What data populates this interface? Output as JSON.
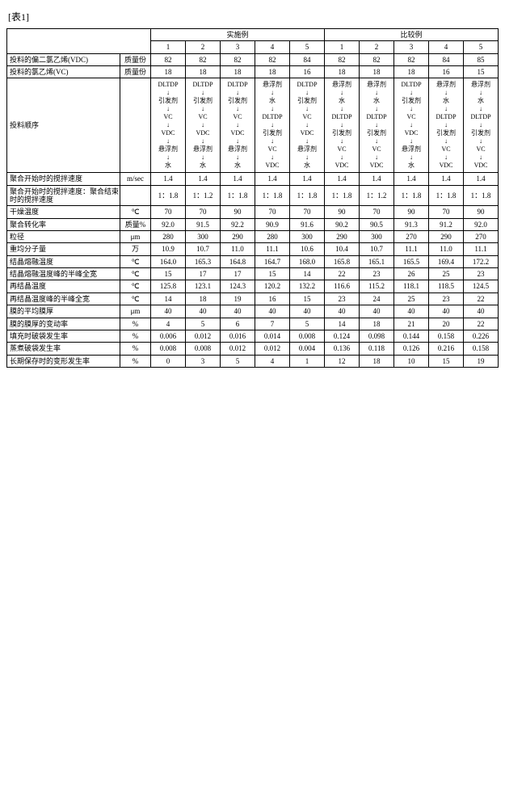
{
  "caption": "[表1]",
  "headers": {
    "group_ex": "实施例",
    "group_cmp": "比较例",
    "nums": [
      "1",
      "2",
      "3",
      "4",
      "5",
      "1",
      "2",
      "3",
      "4",
      "5"
    ]
  },
  "rowlabels": {
    "vdc": "投料的偏二氯乙烯(VDC)",
    "vc": "投料的氯乙烯(VC)",
    "order": "投料顺序",
    "stir_start": "聚合开始时的搅拌速度",
    "stir_ratio": "聚合开始时的搅拌速度：聚合结束时的搅拌速度",
    "dry_temp": "干燥温度",
    "conv": "聚合转化率",
    "particle": "粒径",
    "mw": "重均分子量",
    "melt_temp": "结晶熔融温度",
    "melt_fwhm": "结晶熔融温度峰的半峰全宽",
    "recry_temp": "再结晶温度",
    "recry_fwhm": "再结晶温度峰的半峰全宽",
    "film_thick": "膜的平均膜厚",
    "film_var": "膜的膜厚的变动率",
    "fill_bag": "填充时破袋发生率",
    "steam_bag": "蒸煮破袋发生率",
    "deform": "长期保存时的变形发生率"
  },
  "units": {
    "mass": "质量份",
    "msec": "m/sec",
    "c": "℃",
    "masspct": "质量%",
    "um": "μm",
    "wan": "万",
    "pct": "%"
  },
  "sequence_tokens": {
    "DLTDP": "DLTDP",
    "init": "引发剂",
    "VC": "VC",
    "VDC": "VDC",
    "susp": "悬浮剂",
    "water": "水",
    "arrow": "↓"
  },
  "sequences": [
    [
      "DLTDP",
      "init",
      "VC",
      "VDC",
      "susp",
      "water"
    ],
    [
      "DLTDP",
      "init",
      "VC",
      "VDC",
      "susp",
      "water"
    ],
    [
      "DLTDP",
      "init",
      "VC",
      "VDC",
      "susp",
      "water"
    ],
    [
      "susp",
      "water",
      "DLTDP",
      "init",
      "VC",
      "VDC"
    ],
    [
      "DLTDP",
      "init",
      "VC",
      "VDC",
      "susp",
      "water"
    ],
    [
      "susp",
      "water",
      "DLTDP",
      "init",
      "VC",
      "VDC"
    ],
    [
      "susp",
      "water",
      "DLTDP",
      "init",
      "VC",
      "VDC"
    ],
    [
      "DLTDP",
      "init",
      "VC",
      "VDC",
      "susp",
      "water"
    ],
    [
      "susp",
      "water",
      "DLTDP",
      "init",
      "VC",
      "VDC"
    ],
    [
      "susp",
      "water",
      "DLTDP",
      "init",
      "VC",
      "VDC"
    ]
  ],
  "rows": {
    "vdc": [
      "82",
      "82",
      "82",
      "82",
      "84",
      "82",
      "82",
      "82",
      "84",
      "85"
    ],
    "vc": [
      "18",
      "18",
      "18",
      "18",
      "16",
      "18",
      "18",
      "18",
      "16",
      "15"
    ],
    "stir_start": [
      "1.4",
      "1.4",
      "1.4",
      "1.4",
      "1.4",
      "1.4",
      "1.4",
      "1.4",
      "1.4",
      "1.4"
    ],
    "stir_ratio": [
      "1：1.8",
      "1：1.2",
      "1：1.8",
      "1：1.8",
      "1：1.8",
      "1：1.8",
      "1：1.2",
      "1：1.8",
      "1：1.8",
      "1：1.8"
    ],
    "dry_temp": [
      "70",
      "70",
      "90",
      "70",
      "70",
      "90",
      "70",
      "90",
      "70",
      "90"
    ],
    "conv": [
      "92.0",
      "91.5",
      "92.2",
      "90.9",
      "91.6",
      "90.2",
      "90.5",
      "91.3",
      "91.2",
      "92.0"
    ],
    "particle": [
      "280",
      "300",
      "290",
      "280",
      "300",
      "290",
      "300",
      "270",
      "290",
      "270"
    ],
    "mw": [
      "10.9",
      "10.7",
      "11.0",
      "11.1",
      "10.6",
      "10.4",
      "10.7",
      "11.1",
      "11.0",
      "11.1"
    ],
    "melt_temp": [
      "164.0",
      "165.3",
      "164.8",
      "164.7",
      "168.0",
      "165.8",
      "165.1",
      "165.5",
      "169.4",
      "172.2"
    ],
    "melt_fwhm": [
      "15",
      "17",
      "17",
      "15",
      "14",
      "22",
      "23",
      "26",
      "25",
      "23"
    ],
    "recry_temp": [
      "125.8",
      "123.1",
      "124.3",
      "120.2",
      "132.2",
      "116.6",
      "115.2",
      "118.1",
      "118.5",
      "124.5"
    ],
    "recry_fwhm": [
      "14",
      "18",
      "19",
      "16",
      "15",
      "23",
      "24",
      "25",
      "23",
      "22"
    ],
    "film_thick": [
      "40",
      "40",
      "40",
      "40",
      "40",
      "40",
      "40",
      "40",
      "40",
      "40"
    ],
    "film_var": [
      "4",
      "5",
      "6",
      "7",
      "5",
      "14",
      "18",
      "21",
      "20",
      "22"
    ],
    "fill_bag": [
      "0.006",
      "0.012",
      "0.016",
      "0.014",
      "0.008",
      "0.124",
      "0.098",
      "0.144",
      "0.158",
      "0.226"
    ],
    "steam_bag": [
      "0.008",
      "0.008",
      "0.012",
      "0.012",
      "0.004",
      "0.136",
      "0.118",
      "0.126",
      "0.216",
      "0.158"
    ],
    "deform": [
      "0",
      "3",
      "5",
      "4",
      "1",
      "12",
      "18",
      "10",
      "15",
      "19"
    ]
  }
}
